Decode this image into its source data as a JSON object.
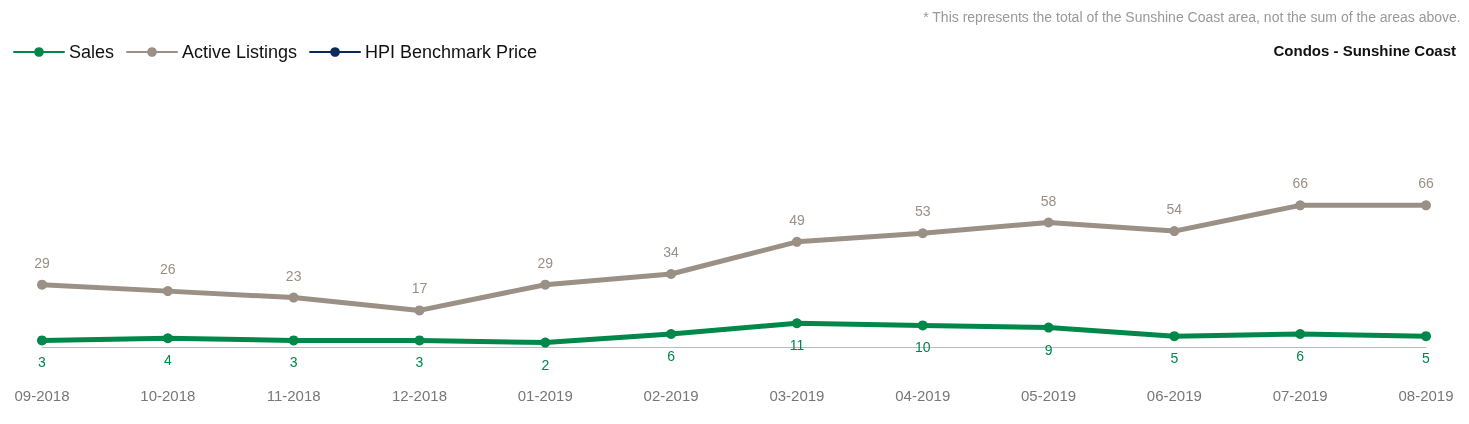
{
  "chart_data": {
    "type": "line",
    "title": "Condos - Sunshine Coast",
    "annotations": [
      "* This represents the total of the Sunshine Coast area, not the sum of the areas above."
    ],
    "categories": [
      "09-2018",
      "10-2018",
      "11-2018",
      "12-2018",
      "01-2019",
      "02-2019",
      "03-2019",
      "04-2019",
      "05-2019",
      "06-2019",
      "07-2019",
      "08-2019"
    ],
    "series": [
      {
        "name": "Sales",
        "color": "#00874a",
        "values": [
          3,
          4,
          3,
          3,
          2,
          6,
          11,
          10,
          9,
          5,
          6,
          5
        ]
      },
      {
        "name": "Active Listings",
        "color": "#9a9085",
        "values": [
          29,
          26,
          23,
          17,
          29,
          34,
          49,
          53,
          58,
          54,
          66,
          66
        ]
      },
      {
        "name": "HPI Benchmark Price",
        "color": "#0a2a5e",
        "values": [
          null,
          null,
          null,
          null,
          null,
          null,
          null,
          null,
          null,
          null,
          null,
          null
        ]
      }
    ],
    "data_labels": true,
    "grid": false,
    "legend": "top left",
    "marker": "circle",
    "line_style": "solid"
  }
}
